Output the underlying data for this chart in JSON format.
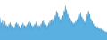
{
  "values": [
    180,
    140,
    160,
    130,
    170,
    140,
    155,
    135,
    165,
    130,
    150,
    125,
    145,
    130,
    155,
    135,
    160,
    130,
    150,
    125,
    145,
    125,
    140,
    130,
    155,
    140,
    160,
    135,
    155,
    130,
    145,
    125,
    140,
    128,
    150,
    135,
    158,
    132,
    148,
    128,
    145,
    130,
    152,
    135,
    160,
    140,
    165,
    138,
    158,
    133,
    148,
    128,
    145,
    130,
    152,
    138,
    162,
    135,
    155,
    130,
    148,
    128,
    145,
    132,
    155,
    140,
    165,
    142,
    168,
    138,
    160,
    132,
    152,
    128,
    148,
    132,
    158,
    142,
    168,
    145,
    172,
    148,
    175,
    150,
    178,
    155,
    190,
    165,
    210,
    180,
    200,
    170,
    185,
    160,
    175,
    155,
    180,
    160,
    190,
    170,
    210,
    185,
    230,
    195,
    215,
    180,
    195,
    165,
    180,
    155,
    175,
    150,
    165,
    145,
    160,
    142,
    158,
    145,
    165,
    150,
    175,
    155,
    185,
    160,
    195,
    165,
    200,
    170,
    185,
    160,
    175,
    150,
    165,
    145,
    175,
    155,
    195,
    170,
    210,
    180,
    195,
    165,
    175,
    150,
    165,
    140,
    155,
    135,
    148,
    130,
    145,
    128,
    142,
    125,
    138,
    122,
    135,
    120,
    132,
    118,
    128,
    115,
    125,
    112,
    122,
    110,
    120,
    108
  ],
  "line_color": "#4a9fd4",
  "fill_color": "#5ab0e0",
  "background_color": "#ffffff",
  "ylim_min": 85,
  "ylim_max": 255
}
